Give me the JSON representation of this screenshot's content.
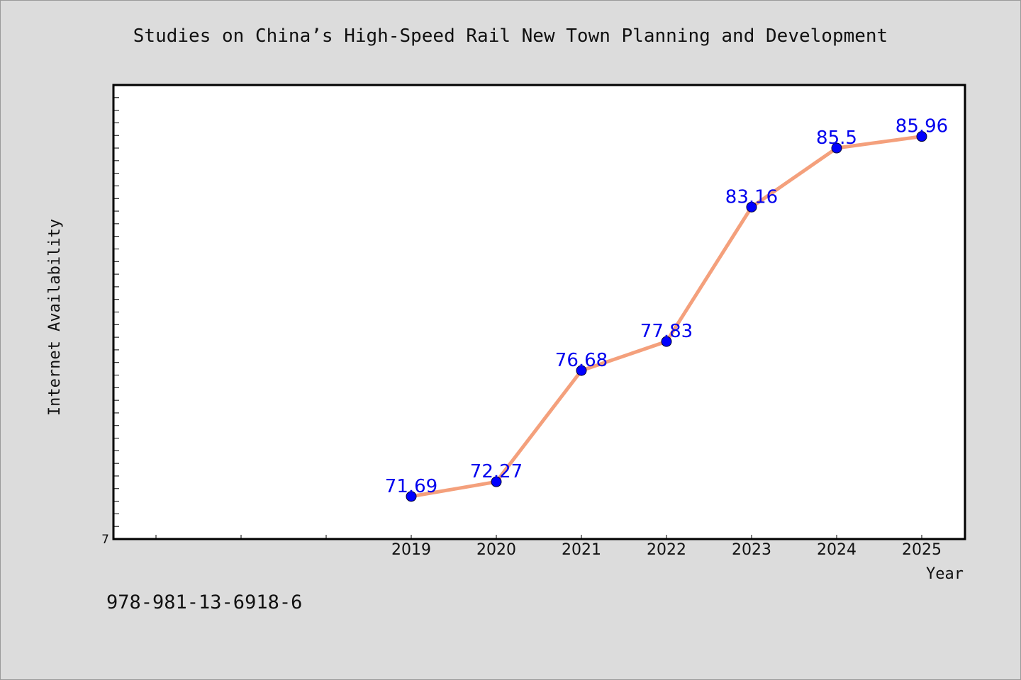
{
  "chart_data": {
    "type": "line",
    "title": "Studies on China’s High-Speed Rail New Town Planning and Development",
    "xlabel": "Year",
    "ylabel": "Internet Availability",
    "x": [
      "2019",
      "2020",
      "2021",
      "2022",
      "2023",
      "2024",
      "2025"
    ],
    "series": [
      {
        "values": [
          71.69,
          72.27,
          76.68,
          77.83,
          83.16,
          85.5,
          85.96
        ]
      }
    ],
    "data_labels": [
      "71.69",
      "72.27",
      "76.68",
      "77.83",
      "83.16",
      "85.5",
      "85.96"
    ],
    "ylim": [
      70,
      88
    ],
    "ytick_label": "7",
    "line_color": "#f4a07c",
    "marker_color": "#0000ff",
    "label_color": "#0000ee",
    "grid": false,
    "legend": "none"
  },
  "footer": {
    "code": "978-981-13-6918-6"
  }
}
